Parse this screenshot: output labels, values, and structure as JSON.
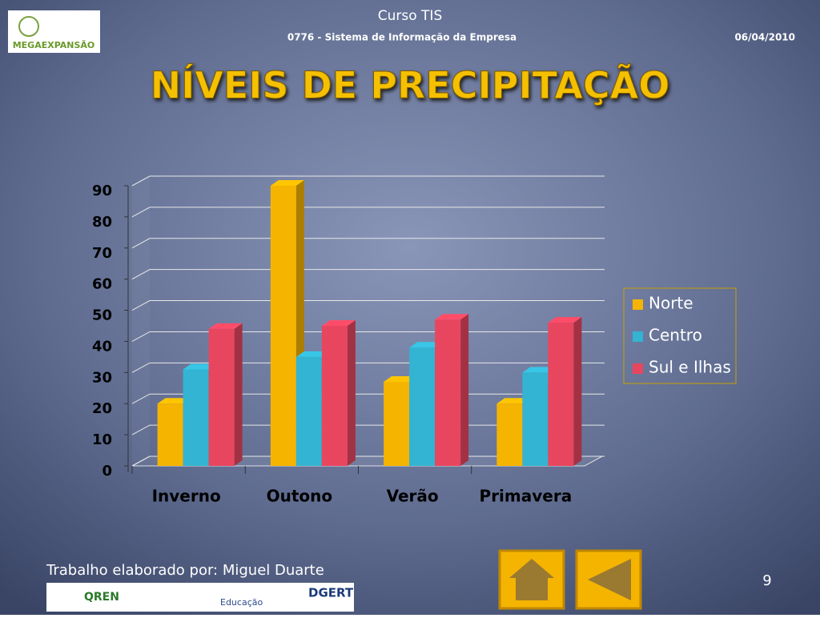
{
  "header": {
    "course": "Curso TIS",
    "subject": "0776 - Sistema de Informação da Empresa",
    "date": "06/04/2010",
    "logo": "MEGAEXPANSÃO"
  },
  "chart_data": {
    "type": "bar3d",
    "title": "NÍVEIS DE PRECIPITAÇÃO",
    "categories": [
      "Inverno",
      "Outono",
      "Verão",
      "Primavera"
    ],
    "series": [
      {
        "name": "Norte",
        "color": "#f5b400",
        "values": [
          20,
          90,
          27,
          20
        ]
      },
      {
        "name": "Centro",
        "color": "#33b4d2",
        "values": [
          31,
          35,
          38,
          30
        ]
      },
      {
        "name": "Sul e Ilhas",
        "color": "#e8465f",
        "values": [
          44,
          45,
          47,
          46
        ]
      }
    ],
    "ylim": [
      0,
      90
    ],
    "yticks": [
      0,
      10,
      20,
      30,
      40,
      50,
      60,
      70,
      80,
      90
    ],
    "grid": true,
    "legend": "right"
  },
  "footer": {
    "author": "Trabalho elaborado por: Miguel Duarte",
    "page": "9",
    "logos": [
      "QREN",
      "Educação",
      "DGERT"
    ]
  }
}
